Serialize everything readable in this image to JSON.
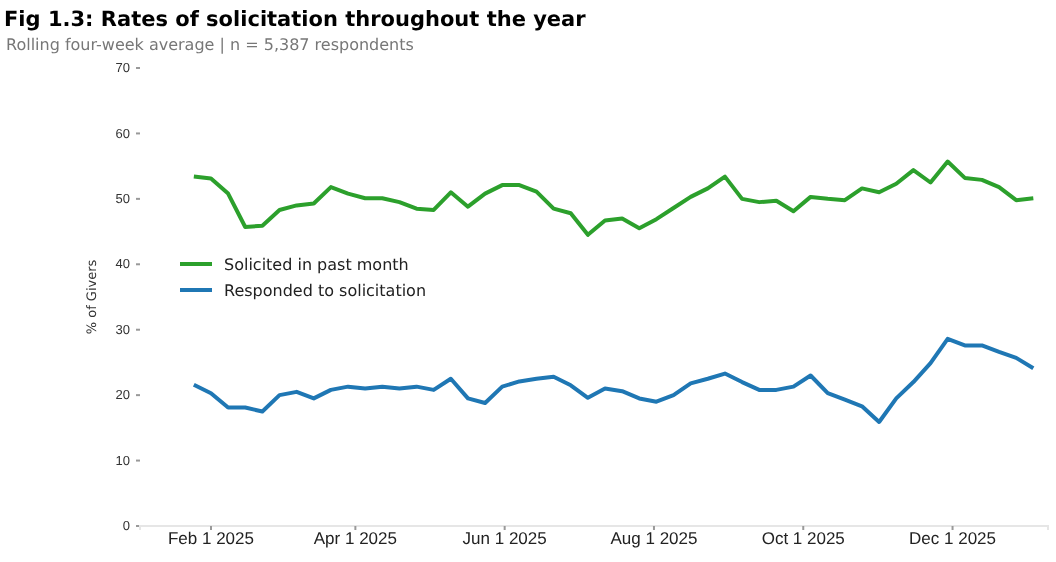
{
  "chart_data": {
    "type": "line",
    "title": "Fig 1.3: Rates of solicitation throughout the year",
    "subtitle": "Rolling four-week average  |  n = 5,387 respondents",
    "ylabel": "% of Givers",
    "x": [
      "2025-01-25",
      "2025-02-01",
      "2025-02-08",
      "2025-02-15",
      "2025-02-22",
      "2025-03-01",
      "2025-03-08",
      "2025-03-15",
      "2025-03-22",
      "2025-03-29",
      "2025-04-05",
      "2025-04-12",
      "2025-04-19",
      "2025-04-26",
      "2025-05-03",
      "2025-05-10",
      "2025-05-17",
      "2025-05-24",
      "2025-05-31",
      "2025-06-07",
      "2025-06-14",
      "2025-06-21",
      "2025-06-28",
      "2025-07-05",
      "2025-07-12",
      "2025-07-19",
      "2025-07-26",
      "2025-08-02",
      "2025-08-09",
      "2025-08-16",
      "2025-08-23",
      "2025-08-30",
      "2025-09-06",
      "2025-09-13",
      "2025-09-20",
      "2025-09-27",
      "2025-10-04",
      "2025-10-11",
      "2025-10-18",
      "2025-10-25",
      "2025-11-01",
      "2025-11-08",
      "2025-11-15",
      "2025-11-22",
      "2025-11-29",
      "2025-12-06",
      "2025-12-13",
      "2025-12-20",
      "2025-12-27",
      "2026-01-03"
    ],
    "series": [
      {
        "name": "Solicited in past month",
        "color": "#2ca02c",
        "values": [
          53.4,
          53.1,
          50.8,
          45.7,
          45.9,
          48.3,
          49,
          49.3,
          51.8,
          50.8,
          50.1,
          50.1,
          49.5,
          48.5,
          48.3,
          51,
          48.8,
          50.8,
          52.1,
          52.1,
          51.1,
          48.5,
          47.8,
          44.5,
          46.7,
          47,
          45.5,
          46.9,
          48.6,
          50.3,
          51.6,
          53.4,
          50,
          49.5,
          49.7,
          48.1,
          50.3,
          50,
          49.8,
          51.6,
          51,
          52.3,
          54.4,
          52.5,
          55.7,
          53.2,
          52.9,
          51.8,
          49.8,
          50.1
        ]
      },
      {
        "name": "Responded to solicitation",
        "color": "#1f77b4",
        "values": [
          21.6,
          20.3,
          18.1,
          18.1,
          17.5,
          20,
          20.5,
          19.5,
          20.8,
          21.3,
          21,
          21.3,
          21,
          21.3,
          20.8,
          22.5,
          19.5,
          18.8,
          21.3,
          22.1,
          22.5,
          22.8,
          21.5,
          19.6,
          21,
          20.6,
          19.5,
          19,
          20,
          21.8,
          22.5,
          23.3,
          22,
          20.8,
          20.8,
          21.3,
          23,
          20.3,
          19.3,
          18.3,
          15.9,
          19.5,
          22,
          24.9,
          28.6,
          27.6,
          27.6,
          26.6,
          25.7,
          24.1
        ]
      }
    ],
    "xticks": [
      {
        "value": "2025-02-01",
        "label": "Feb 1 2025"
      },
      {
        "value": "2025-04-01",
        "label": "Apr 1 2025"
      },
      {
        "value": "2025-06-01",
        "label": "Jun 1 2025"
      },
      {
        "value": "2025-08-01",
        "label": "Aug 1 2025"
      },
      {
        "value": "2025-10-01",
        "label": "Oct 1 2025"
      },
      {
        "value": "2025-12-01",
        "label": "Dec 1 2025"
      }
    ],
    "xlim": [
      "2025-01-03",
      "2026-01-09"
    ],
    "ylim": [
      0,
      70
    ],
    "yticks": [
      0,
      10,
      20,
      30,
      40,
      50,
      60,
      70
    ],
    "legend": "left",
    "grid": false,
    "marker": "none",
    "line_style": "solid"
  }
}
